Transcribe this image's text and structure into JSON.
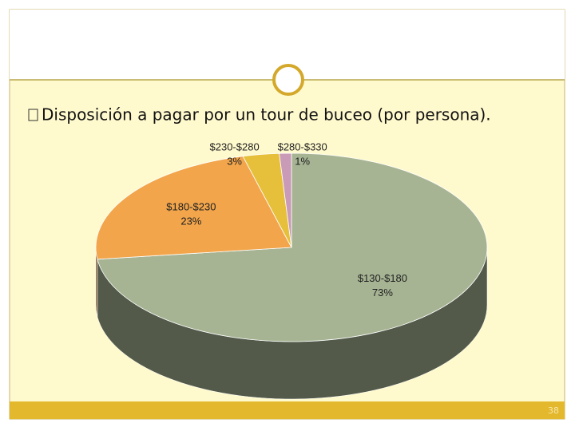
{
  "chart_data": {
    "type": "pie",
    "title": "Disposición a pagar por un tour de buceo (por persona).",
    "categories": [
      "$130-$180",
      "$180-$230",
      "$230-$280",
      "$280-$330"
    ],
    "values": [
      73,
      23,
      3,
      1
    ],
    "value_labels": [
      "73%",
      "23%",
      "3%",
      "1%"
    ],
    "colors": [
      "#a6b493",
      "#f2a54b",
      "#e6c03a",
      "#c99bb6"
    ]
  },
  "slide_number": "38"
}
